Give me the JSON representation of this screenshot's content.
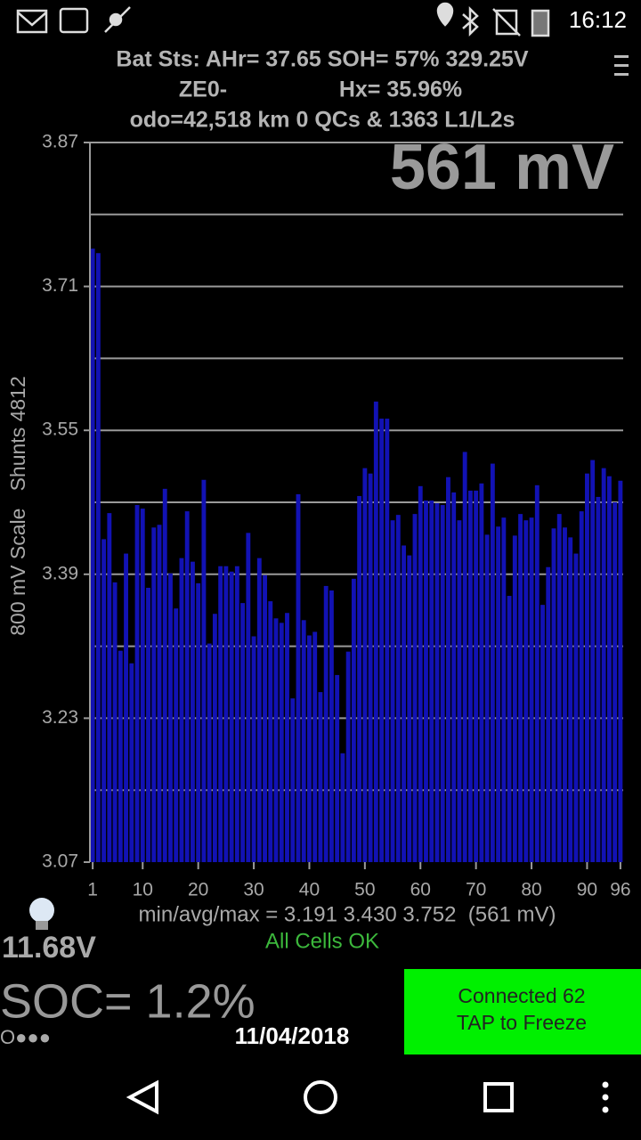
{
  "status_bar": {
    "time": "16:12"
  },
  "header": {
    "line1": "Bat Sts: AHr= 37.65 SOH= 57% 329.25V",
    "code": "ZE0-",
    "hx": "Hx= 35.96%",
    "odo": "odo=42,518 km 0 QCs & 1363 L1/L2s"
  },
  "chart_data": {
    "type": "bar",
    "y_label": "800 mV Scale   Shunts 4812",
    "annotation": "561 mV",
    "x": [
      1,
      2,
      3,
      4,
      5,
      6,
      7,
      8,
      9,
      10,
      11,
      12,
      13,
      14,
      15,
      16,
      17,
      18,
      19,
      20,
      21,
      22,
      23,
      24,
      25,
      26,
      27,
      28,
      29,
      30,
      31,
      32,
      33,
      34,
      35,
      36,
      37,
      38,
      39,
      40,
      41,
      42,
      43,
      44,
      45,
      46,
      47,
      48,
      49,
      50,
      51,
      52,
      53,
      54,
      55,
      56,
      57,
      58,
      59,
      60,
      61,
      62,
      63,
      64,
      65,
      66,
      67,
      68,
      69,
      70,
      71,
      72,
      73,
      74,
      75,
      76,
      77,
      78,
      79,
      80,
      81,
      82,
      83,
      84,
      85,
      86,
      87,
      88,
      89,
      90,
      91,
      92,
      93,
      94,
      95,
      96
    ],
    "values": [
      3.752,
      3.747,
      3.429,
      3.458,
      3.381,
      3.305,
      3.413,
      3.291,
      3.467,
      3.463,
      3.375,
      3.442,
      3.445,
      3.485,
      3.391,
      3.352,
      3.408,
      3.46,
      3.404,
      3.38,
      3.495,
      3.313,
      3.346,
      3.399,
      3.399,
      3.393,
      3.399,
      3.358,
      3.436,
      3.321,
      3.408,
      3.389,
      3.36,
      3.341,
      3.336,
      3.347,
      3.252,
      3.479,
      3.339,
      3.322,
      3.326,
      3.259,
      3.377,
      3.372,
      3.278,
      3.191,
      3.304,
      3.385,
      3.477,
      3.508,
      3.502,
      3.582,
      3.563,
      3.563,
      3.45,
      3.456,
      3.422,
      3.411,
      3.457,
      3.488,
      3.472,
      3.472,
      3.469,
      3.467,
      3.498,
      3.481,
      3.45,
      3.526,
      3.483,
      3.483,
      3.491,
      3.434,
      3.513,
      3.443,
      3.453,
      3.366,
      3.433,
      3.457,
      3.45,
      3.453,
      3.489,
      3.356,
      3.398,
      3.441,
      3.457,
      3.442,
      3.431,
      3.413,
      3.46,
      3.502,
      3.517,
      3.476,
      3.508,
      3.499,
      3.47,
      3.494
    ],
    "color": "#1212b4",
    "xlim": [
      0.5,
      96.5
    ],
    "xticks": [
      1,
      10,
      20,
      30,
      40,
      50,
      60,
      70,
      80,
      90,
      96
    ],
    "ylim": [
      3.07,
      3.87
    ],
    "yticks": [
      3.07,
      3.23,
      3.39,
      3.55,
      3.71,
      3.87
    ],
    "minor_yticks": [
      3.15,
      3.31,
      3.47,
      3.63,
      3.79
    ],
    "grid": true
  },
  "footer": {
    "stats": "min/avg/max = 3.191 3.430 3.752  (561 mV)",
    "status": "All Cells OK",
    "voltage": "11.68V",
    "soc": "SOC= 1.2%",
    "dots": "O●●●",
    "date": "11/04/2018"
  },
  "button": {
    "line1": "Connected 62",
    "line2": "TAP to Freeze"
  }
}
